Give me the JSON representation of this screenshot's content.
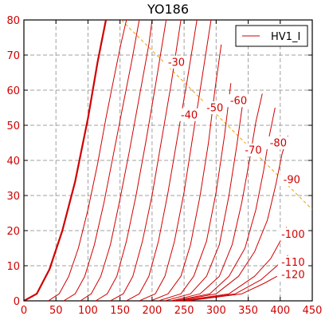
{
  "chart_data": {
    "type": "line",
    "title": "YO186",
    "xlabel": "",
    "ylabel": "",
    "xlim": [
      0,
      450
    ],
    "ylim": [
      0,
      80
    ],
    "x_ticks": [
      0,
      50,
      100,
      150,
      200,
      250,
      300,
      350,
      400,
      450
    ],
    "y_ticks": [
      0,
      10,
      20,
      30,
      40,
      50,
      60,
      70,
      80
    ],
    "grid": true,
    "legend": {
      "placement": "top-right",
      "entries": [
        {
          "label": "HV1_I",
          "color": "#d10000"
        }
      ]
    },
    "curve_color": "#d10000",
    "dissipation_color": "#f0a000",
    "dissipation_line": {
      "x": [
        152,
        450
      ],
      "y": [
        80,
        26
      ]
    },
    "series": [
      {
        "label": "",
        "bold": true,
        "x": [
          0,
          20,
          40,
          60,
          80,
          100,
          115,
          128
        ],
        "y": [
          0,
          2,
          9,
          20,
          34,
          52,
          68,
          80
        ]
      },
      {
        "label": "",
        "x": [
          38,
          55,
          70,
          85,
          100,
          115,
          128,
          140,
          150,
          160
        ],
        "y": [
          0,
          2,
          7,
          15,
          26,
          39,
          52,
          63,
          72,
          80
        ]
      },
      {
        "label": "",
        "x": [
          62,
          80,
          95,
          110,
          125,
          140,
          155,
          168,
          180
        ],
        "y": [
          0,
          2,
          7,
          16,
          28,
          42,
          56,
          68,
          80
        ]
      },
      {
        "label": "",
        "x": [
          88,
          105,
          120,
          135,
          150,
          165,
          180,
          195,
          200
        ],
        "y": [
          0,
          2,
          7,
          16,
          29,
          43,
          58,
          73,
          80
        ]
      },
      {
        "label": "",
        "x": [
          112,
          130,
          145,
          160,
          175,
          190,
          205,
          222
        ],
        "y": [
          0,
          2,
          7,
          17,
          30,
          45,
          61,
          80
        ]
      },
      {
        "label": "",
        "x": [
          135,
          155,
          170,
          185,
          200,
          215,
          230,
          245
        ],
        "y": [
          0,
          2,
          7,
          17,
          30,
          46,
          62,
          80
        ]
      },
      {
        "label": "",
        "x": [
          160,
          180,
          195,
          210,
          225,
          240,
          255,
          270
        ],
        "y": [
          0,
          2,
          7,
          17,
          31,
          47,
          63,
          80
        ]
      },
      {
        "label": "-30",
        "x": [
          180,
          205,
          220,
          235,
          250,
          262,
          275,
          292
        ],
        "y": [
          0,
          2,
          7,
          17,
          31,
          45,
          60,
          80
        ]
      },
      {
        "label": "-40",
        "x": [
          198,
          225,
          245,
          260,
          275,
          288,
          298,
          308
        ],
        "y": [
          0,
          2,
          7,
          16,
          30,
          45,
          60,
          73
        ]
      },
      {
        "label": "-50",
        "x": [
          210,
          245,
          265,
          285,
          300,
          313,
          323
        ],
        "y": [
          0,
          2,
          7,
          17,
          31,
          47,
          62
        ]
      },
      {
        "label": "-60",
        "x": [
          220,
          260,
          285,
          305,
          320,
          332,
          342
        ],
        "y": [
          0,
          2,
          7,
          16,
          30,
          44,
          57
        ]
      },
      {
        "label": "-70",
        "x": [
          230,
          275,
          305,
          325,
          340,
          352,
          362,
          372
        ],
        "y": [
          0,
          2,
          7,
          16,
          28,
          40,
          51,
          59
        ]
      },
      {
        "label": "-80",
        "x": [
          235,
          290,
          320,
          345,
          362,
          374,
          383,
          392
        ],
        "y": [
          0,
          2,
          7,
          15,
          26,
          37,
          47,
          55
        ]
      },
      {
        "label": "-90",
        "x": [
          240,
          300,
          335,
          360,
          380,
          393,
          403,
          412
        ],
        "y": [
          0,
          2,
          7,
          14,
          23,
          33,
          42,
          47
        ]
      },
      {
        "label": "-100",
        "x": [
          245,
          320,
          360,
          385,
          400,
          410
        ],
        "y": [
          0,
          2,
          7,
          12,
          17,
          21
        ]
      },
      {
        "label": "-110",
        "x": [
          250,
          330,
          370,
          395,
          412
        ],
        "y": [
          0,
          2,
          6,
          10,
          13
        ]
      },
      {
        "label": "-120",
        "x": [
          255,
          340,
          375,
          395
        ],
        "y": [
          0,
          2,
          5,
          7
        ]
      }
    ],
    "annotations": [
      {
        "text": "-30",
        "x": 238,
        "y": 68
      },
      {
        "text": "-40",
        "x": 258,
        "y": 53
      },
      {
        "text": "-50",
        "x": 298,
        "y": 55
      },
      {
        "text": "-60",
        "x": 335,
        "y": 57
      },
      {
        "text": "-70",
        "x": 358,
        "y": 43
      },
      {
        "text": "-80",
        "x": 397,
        "y": 45
      },
      {
        "text": "-90",
        "x": 418,
        "y": 34.5
      },
      {
        "text": "-100",
        "x": 420,
        "y": 19
      },
      {
        "text": "-110",
        "x": 420,
        "y": 11
      },
      {
        "text": "-120",
        "x": 420,
        "y": 7.5
      }
    ]
  }
}
